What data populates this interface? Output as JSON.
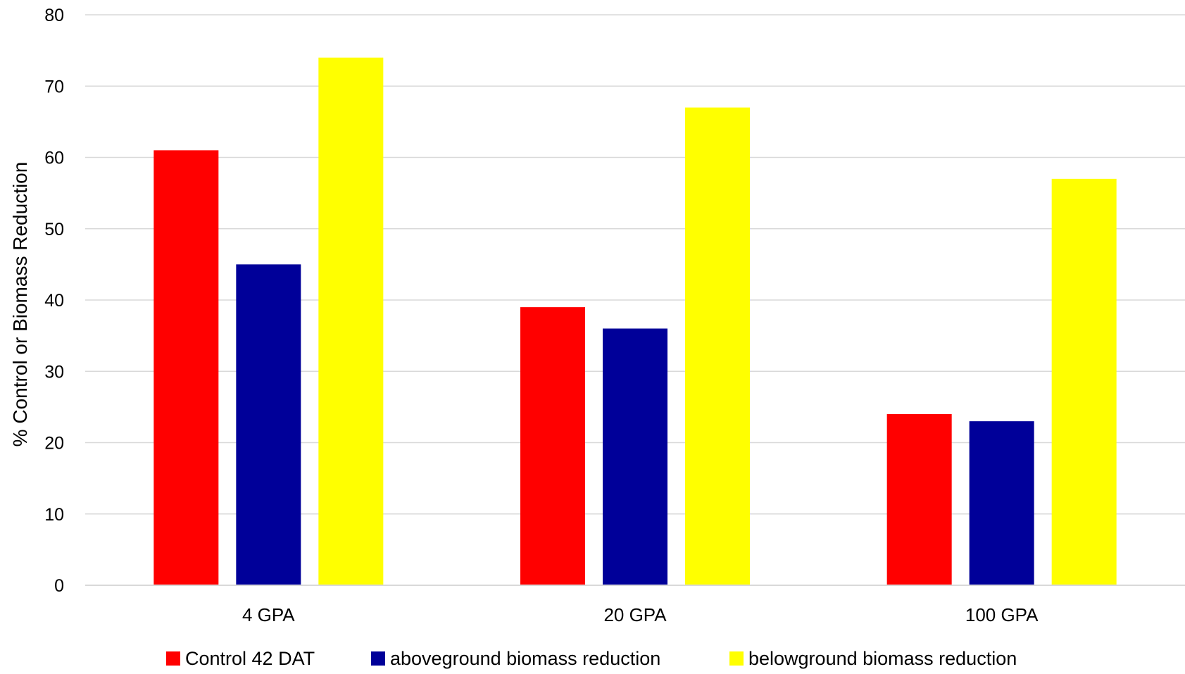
{
  "chart_data": {
    "type": "bar",
    "title": "",
    "xlabel": "",
    "ylabel": "% Control or Biomass Reduction",
    "ylim": [
      0,
      80
    ],
    "yticks": [
      0,
      10,
      20,
      30,
      40,
      50,
      60,
      70,
      80
    ],
    "grid": true,
    "legend_position": "bottom",
    "categories": [
      "4 GPA",
      "20 GPA",
      "100 GPA"
    ],
    "series": [
      {
        "name": "Control 42 DAT",
        "color": "#ff0000",
        "values": [
          61,
          39,
          24
        ]
      },
      {
        "name": "aboveground biomass reduction",
        "color": "#000099",
        "values": [
          45,
          36,
          23
        ]
      },
      {
        "name": "belowground biomass reduction",
        "color": "#ffff00",
        "values": [
          74,
          67,
          57
        ]
      }
    ]
  }
}
